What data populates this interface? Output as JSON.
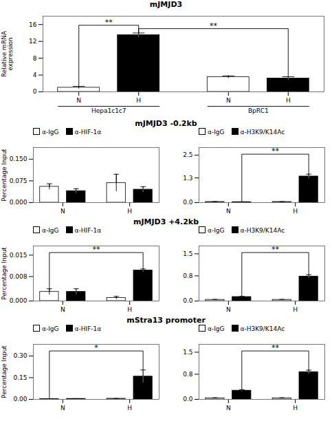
{
  "chart_data": [
    {
      "type": "bar",
      "title": "mJMJD3",
      "ylabel": "Relative mRNA\nexpression",
      "categories": [
        "Hepa1c1c7",
        "BpRC1"
      ],
      "series": [
        {
          "name": "N",
          "color": "white",
          "values": [
            1.0,
            3.5
          ],
          "errors": [
            0.3,
            0.3
          ]
        },
        {
          "name": "H",
          "color": "black",
          "values": [
            13.5,
            3.2
          ],
          "errors": [
            0.5,
            0.4
          ]
        }
      ],
      "ylim": [
        0,
        18
      ],
      "yticks": [
        0,
        4,
        8,
        12,
        16
      ],
      "annotations": [
        {
          "text": "**",
          "from": {
            "category": "Hepa1c1c7",
            "series": "N"
          },
          "to": {
            "category": "Hepa1c1c7",
            "series": "H"
          }
        },
        {
          "text": "**",
          "from": {
            "category": "Hepa1c1c7",
            "series": "H"
          },
          "to": {
            "category": "BpRC1",
            "series": "H"
          }
        }
      ]
    },
    {
      "type": "bar",
      "title": "mJMJD3 -0.2kb",
      "ylabel": "Percentage Input",
      "categories": [
        "N",
        "H"
      ],
      "series": [
        {
          "name": "α-IgG",
          "color": "white",
          "values": [
            0.055,
            0.068
          ],
          "errors": [
            0.01,
            0.03
          ]
        },
        {
          "name": "α-HIF-1α",
          "color": "black",
          "values": [
            0.04,
            0.045
          ],
          "errors": [
            0.008,
            0.01
          ]
        }
      ],
      "ylim": [
        0,
        0.19
      ],
      "yticks": [
        {
          "value": 0,
          "label": "0.000"
        },
        0.075,
        {
          "value": 0.15,
          "label": "0.150"
        }
      ],
      "legend": "upper left"
    },
    {
      "type": "bar",
      "categories": [
        "N",
        "H"
      ],
      "series": [
        {
          "name": "α-IgG",
          "color": "white",
          "values": [
            0.04,
            0.04
          ],
          "errors": [
            0.015,
            0.01
          ]
        },
        {
          "name": "α-H3K9/K14Ac",
          "color": "black",
          "values": [
            0.03,
            1.38
          ],
          "errors": [
            0.008,
            0.12
          ]
        }
      ],
      "ylim": [
        0,
        2.9
      ],
      "yticks": [
        {
          "value": 0,
          "label": "0.0"
        },
        1.3,
        2.5
      ],
      "legend": "upper left",
      "annotations": [
        {
          "text": "**",
          "from": {
            "category": "N",
            "series": "α-H3K9/K14Ac"
          },
          "to": {
            "category": "H",
            "series": "α-H3K9/K14Ac"
          }
        }
      ]
    },
    {
      "type": "bar",
      "title": "mJMJD3 +4.2kb",
      "ylabel": "Percentage Input",
      "categories": [
        "N",
        "H"
      ],
      "series": [
        {
          "name": "α-IgG",
          "color": "white",
          "values": [
            0.003,
            0.001
          ],
          "errors": [
            0.001,
            0.0005
          ]
        },
        {
          "name": "α-HIF-1α",
          "color": "black",
          "values": [
            0.003,
            0.01
          ],
          "errors": [
            0.001,
            0.0005
          ]
        }
      ],
      "ylim": [
        0,
        0.018
      ],
      "yticks": [
        {
          "value": 0,
          "label": "0.000"
        },
        0.008,
        0.015
      ],
      "legend": "upper left",
      "annotations": [
        {
          "text": "**",
          "from": {
            "category": "N",
            "series": "α-IgG"
          },
          "to": {
            "category": "H",
            "series": "α-HIF-1α"
          }
        }
      ]
    },
    {
      "type": "bar",
      "categories": [
        "N",
        "H"
      ],
      "series": [
        {
          "name": "α-IgG",
          "color": "white",
          "values": [
            0.04,
            0.04
          ],
          "errors": [
            0.01,
            0.01
          ]
        },
        {
          "name": "α-H3K9/K14Ac",
          "color": "black",
          "values": [
            0.13,
            0.78
          ],
          "errors": [
            0.02,
            0.055
          ]
        }
      ],
      "ylim": [
        0,
        1.75
      ],
      "yticks": [
        {
          "value": 0,
          "label": "0.0"
        },
        0.8,
        1.5
      ],
      "legend": "upper left",
      "annotations": [
        {
          "text": "**",
          "from": {
            "category": "N",
            "series": "α-H3K9/K14Ac"
          },
          "to": {
            "category": "H",
            "series": "α-H3K9/K14Ac"
          }
        }
      ]
    },
    {
      "type": "bar",
      "title": "mStra13 promoter",
      "ylabel": "Percentage Input",
      "categories": [
        "N",
        "H"
      ],
      "series": [
        {
          "name": "α-IgG",
          "color": "white",
          "values": [
            0.003,
            0.005
          ],
          "errors": [
            0.001,
            0.001
          ]
        },
        {
          "name": "α-HIF-1α",
          "color": "black",
          "values": [
            0.004,
            0.158
          ],
          "errors": [
            0.001,
            0.045
          ]
        }
      ],
      "ylim": [
        0,
        0.38
      ],
      "yticks": [
        {
          "value": 0,
          "label": "0.00"
        },
        0.15,
        {
          "value": 0.3,
          "label": "0.30"
        }
      ],
      "legend": "upper left",
      "annotations": [
        {
          "text": "*",
          "from": {
            "category": "N",
            "series": "α-IgG"
          },
          "to": {
            "category": "H",
            "series": "α-HIF-1α"
          }
        }
      ]
    },
    {
      "type": "bar",
      "categories": [
        "N",
        "H"
      ],
      "series": [
        {
          "name": "α-IgG",
          "color": "white",
          "values": [
            0.04,
            0.04
          ],
          "errors": [
            0.01,
            0.01
          ]
        },
        {
          "name": "α-H3K9/K14Ac",
          "color": "black",
          "values": [
            0.28,
            0.87
          ],
          "errors": [
            0.03,
            0.06
          ]
        }
      ],
      "ylim": [
        0,
        1.75
      ],
      "yticks": [
        {
          "value": 0,
          "label": "0.0"
        },
        0.8,
        1.5
      ],
      "legend": "upper left",
      "annotations": [
        {
          "text": "**",
          "from": {
            "category": "N",
            "series": "α-H3K9/K14Ac"
          },
          "to": {
            "category": "H",
            "series": "α-H3K9/K14Ac"
          }
        }
      ]
    }
  ]
}
